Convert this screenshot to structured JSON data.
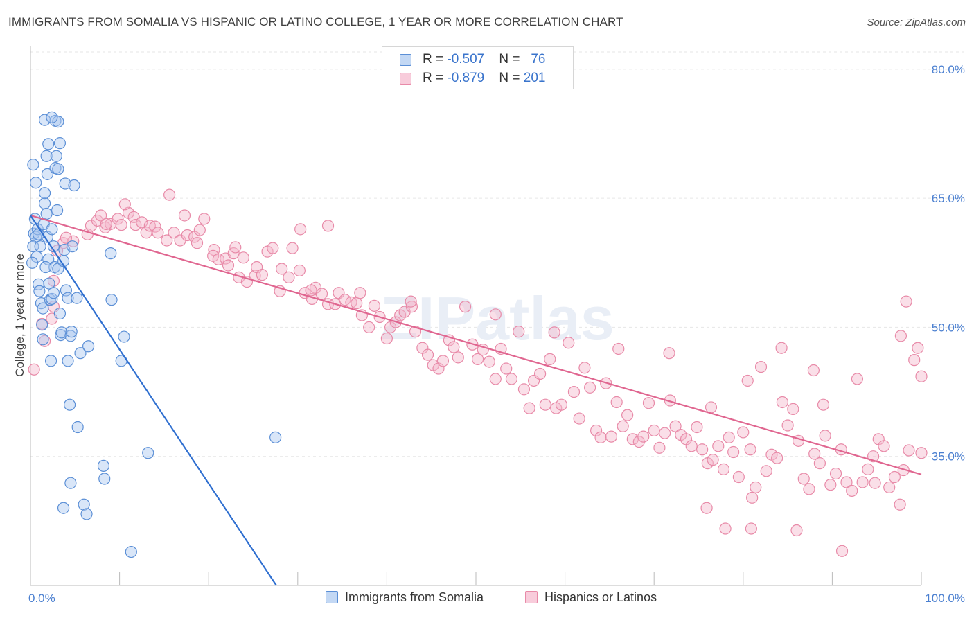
{
  "title": "IMMIGRANTS FROM SOMALIA VS HISPANIC OR LATINO COLLEGE, 1 YEAR OR MORE CORRELATION CHART",
  "source": "Source: ZipAtlas.com",
  "watermark": "ZIPatlas",
  "legend_top": [
    {
      "r_label": "R = ",
      "r_value": "-0.507",
      "n_label": "N = ",
      "n_value": "76"
    },
    {
      "r_label": "R = ",
      "r_value": "-0.879",
      "n_label": "N = ",
      "n_value": "201"
    }
  ],
  "colors": {
    "somalia_fill": "#aac8f0",
    "somalia_stroke": "#5b8fd6",
    "somalia_line": "#2f6fd0",
    "hispanic_fill": "#f5b8cc",
    "hispanic_stroke": "#e88aa8",
    "hispanic_line": "#e06690",
    "tick_label": "#4a7fd0",
    "grid": "#e6e6e6"
  },
  "chart_data": {
    "type": "scatter",
    "xlabel": "",
    "ylabel": "College, 1 year or more",
    "xlim": [
      0,
      100
    ],
    "ylim": [
      20,
      82
    ],
    "x_tick_labels": [
      {
        "value": 0,
        "label": "0.0%"
      },
      {
        "value": 100,
        "label": "100.0%"
      }
    ],
    "y_tick_labels": [
      {
        "value": 35,
        "label": "35.0%"
      },
      {
        "value": 50,
        "label": "50.0%"
      },
      {
        "value": 65,
        "label": "65.0%"
      },
      {
        "value": 80,
        "label": "80.0%"
      }
    ],
    "grid": true,
    "legend_placement": "bottom",
    "series": [
      {
        "name": "Immigrants from Somalia",
        "trendline": {
          "x": [
            0,
            27.6
          ],
          "y": [
            63.0,
            20.0
          ]
        },
        "points": [
          [
            0.3,
            68.9
          ],
          [
            0.6,
            66.8
          ],
          [
            0.5,
            62.6
          ],
          [
            0.4,
            60.9
          ],
          [
            0.6,
            60.5
          ],
          [
            0.3,
            59.4
          ],
          [
            0.7,
            58.2
          ],
          [
            0.2,
            57.5
          ],
          [
            0.8,
            61.4
          ],
          [
            0.9,
            55.0
          ],
          [
            1.1,
            59.4
          ],
          [
            1.0,
            54.2
          ],
          [
            1.2,
            52.8
          ],
          [
            1.3,
            50.3
          ],
          [
            1.4,
            48.6
          ],
          [
            1.5,
            62.0
          ],
          [
            1.6,
            64.4
          ],
          [
            1.6,
            65.6
          ],
          [
            1.8,
            69.9
          ],
          [
            1.9,
            67.8
          ],
          [
            1.9,
            60.5
          ],
          [
            2.0,
            57.9
          ],
          [
            2.1,
            55.1
          ],
          [
            2.2,
            53.2
          ],
          [
            2.3,
            46.1
          ],
          [
            2.4,
            53.3
          ],
          [
            2.4,
            61.4
          ],
          [
            2.6,
            59.4
          ],
          [
            2.7,
            57.0
          ],
          [
            2.9,
            69.9
          ],
          [
            2.8,
            68.5
          ],
          [
            3.1,
            68.4
          ],
          [
            3.3,
            71.4
          ],
          [
            3.1,
            56.8
          ],
          [
            3.3,
            51.6
          ],
          [
            3.4,
            49.1
          ],
          [
            3.5,
            49.4
          ],
          [
            3.8,
            59.0
          ],
          [
            3.7,
            57.7
          ],
          [
            3.9,
            66.7
          ],
          [
            4.0,
            54.3
          ],
          [
            4.2,
            53.4
          ],
          [
            4.2,
            46.1
          ],
          [
            4.4,
            41.0
          ],
          [
            4.5,
            49.0
          ],
          [
            4.6,
            49.5
          ],
          [
            4.7,
            59.4
          ],
          [
            4.9,
            66.5
          ],
          [
            5.2,
            53.4
          ],
          [
            5.3,
            38.4
          ],
          [
            5.6,
            47.0
          ],
          [
            6.0,
            29.4
          ],
          [
            6.3,
            28.3
          ],
          [
            6.5,
            47.8
          ],
          [
            3.7,
            29.0
          ],
          [
            4.5,
            31.9
          ],
          [
            2.8,
            74.0
          ],
          [
            3.1,
            73.9
          ],
          [
            8.2,
            33.9
          ],
          [
            8.3,
            32.4
          ],
          [
            9.0,
            58.6
          ],
          [
            9.1,
            53.2
          ],
          [
            10.2,
            46.1
          ],
          [
            10.5,
            48.9
          ],
          [
            11.3,
            23.9
          ],
          [
            13.2,
            35.4
          ],
          [
            1.6,
            74.1
          ],
          [
            2.4,
            74.4
          ],
          [
            2.0,
            71.3
          ],
          [
            27.5,
            37.2
          ],
          [
            3.0,
            63.6
          ],
          [
            2.6,
            54.0
          ],
          [
            1.4,
            52.2
          ],
          [
            0.9,
            60.8
          ],
          [
            1.8,
            63.2
          ],
          [
            1.7,
            57.0
          ]
        ]
      },
      {
        "name": "Hispanics or Latinos",
        "trendline": {
          "x": [
            0,
            100
          ],
          "y": [
            63.0,
            32.9
          ]
        },
        "points": [
          [
            0.4,
            45.1
          ],
          [
            1.3,
            50.4
          ],
          [
            2.4,
            51.0
          ],
          [
            2.6,
            52.4
          ],
          [
            1.6,
            48.4
          ],
          [
            2.6,
            55.4
          ],
          [
            3.7,
            59.8
          ],
          [
            4.8,
            60.0
          ],
          [
            6.4,
            60.8
          ],
          [
            6.8,
            61.8
          ],
          [
            7.5,
            62.4
          ],
          [
            7.9,
            63.0
          ],
          [
            8.4,
            61.6
          ],
          [
            9.0,
            62.0
          ],
          [
            9.8,
            62.6
          ],
          [
            10.2,
            61.9
          ],
          [
            11.0,
            63.3
          ],
          [
            11.6,
            62.8
          ],
          [
            11.8,
            61.9
          ],
          [
            12.5,
            62.2
          ],
          [
            13.0,
            61.0
          ],
          [
            13.4,
            61.8
          ],
          [
            14.0,
            61.7
          ],
          [
            14.3,
            61.0
          ],
          [
            15.3,
            60.1
          ],
          [
            16.1,
            61.0
          ],
          [
            16.8,
            60.1
          ],
          [
            17.6,
            60.7
          ],
          [
            18.4,
            60.5
          ],
          [
            18.7,
            59.8
          ],
          [
            19.0,
            61.3
          ],
          [
            19.5,
            62.6
          ],
          [
            20.6,
            59.0
          ],
          [
            20.5,
            58.3
          ],
          [
            21.1,
            57.9
          ],
          [
            21.9,
            58.0
          ],
          [
            22.2,
            57.2
          ],
          [
            22.8,
            58.6
          ],
          [
            23.4,
            55.8
          ],
          [
            23.9,
            58.1
          ],
          [
            24.3,
            55.3
          ],
          [
            25.2,
            56.0
          ],
          [
            25.4,
            57.0
          ],
          [
            26.0,
            56.1
          ],
          [
            26.6,
            58.8
          ],
          [
            27.2,
            59.2
          ],
          [
            28.0,
            54.2
          ],
          [
            28.2,
            56.8
          ],
          [
            29.0,
            55.8
          ],
          [
            29.4,
            59.2
          ],
          [
            30.2,
            56.6
          ],
          [
            30.8,
            54.0
          ],
          [
            31.6,
            53.3
          ],
          [
            32.0,
            54.6
          ],
          [
            32.7,
            53.9
          ],
          [
            33.4,
            52.7
          ],
          [
            34.2,
            52.7
          ],
          [
            34.6,
            54.0
          ],
          [
            35.3,
            53.2
          ],
          [
            36.0,
            52.9
          ],
          [
            36.6,
            52.8
          ],
          [
            37.2,
            51.4
          ],
          [
            38.0,
            50.0
          ],
          [
            38.6,
            52.5
          ],
          [
            39.2,
            51.2
          ],
          [
            40.0,
            48.7
          ],
          [
            40.4,
            50.0
          ],
          [
            41.0,
            50.6
          ],
          [
            41.5,
            51.4
          ],
          [
            42.0,
            51.8
          ],
          [
            42.8,
            52.4
          ],
          [
            43.2,
            49.5
          ],
          [
            44.0,
            47.6
          ],
          [
            44.6,
            46.8
          ],
          [
            45.2,
            45.6
          ],
          [
            45.8,
            45.2
          ],
          [
            46.3,
            46.1
          ],
          [
            47.0,
            48.5
          ],
          [
            47.5,
            47.7
          ],
          [
            48.0,
            46.5
          ],
          [
            48.8,
            52.4
          ],
          [
            49.6,
            48.0
          ],
          [
            50.2,
            46.3
          ],
          [
            50.8,
            47.4
          ],
          [
            51.5,
            46.0
          ],
          [
            52.2,
            44.0
          ],
          [
            52.8,
            47.5
          ],
          [
            53.4,
            45.2
          ],
          [
            54.0,
            44.0
          ],
          [
            54.8,
            49.5
          ],
          [
            55.4,
            42.8
          ],
          [
            56.0,
            40.6
          ],
          [
            56.5,
            43.8
          ],
          [
            57.2,
            44.6
          ],
          [
            57.8,
            41.0
          ],
          [
            58.3,
            46.3
          ],
          [
            59.0,
            40.6
          ],
          [
            59.6,
            41.0
          ],
          [
            60.4,
            48.2
          ],
          [
            61.0,
            42.5
          ],
          [
            61.6,
            39.4
          ],
          [
            62.2,
            45.3
          ],
          [
            62.8,
            43.0
          ],
          [
            63.5,
            38.0
          ],
          [
            64.0,
            37.2
          ],
          [
            64.6,
            43.5
          ],
          [
            65.2,
            37.3
          ],
          [
            65.8,
            41.3
          ],
          [
            66.5,
            38.5
          ],
          [
            67.0,
            39.8
          ],
          [
            67.6,
            37.0
          ],
          [
            68.3,
            36.7
          ],
          [
            68.8,
            37.3
          ],
          [
            69.4,
            41.2
          ],
          [
            70.0,
            38.0
          ],
          [
            70.6,
            36.0
          ],
          [
            71.2,
            37.7
          ],
          [
            71.8,
            41.5
          ],
          [
            72.4,
            38.5
          ],
          [
            73.0,
            37.5
          ],
          [
            73.6,
            37.0
          ],
          [
            74.2,
            36.2
          ],
          [
            74.8,
            38.4
          ],
          [
            75.4,
            35.8
          ],
          [
            76.0,
            34.2
          ],
          [
            76.6,
            34.6
          ],
          [
            77.2,
            36.2
          ],
          [
            77.8,
            33.5
          ],
          [
            78.4,
            37.2
          ],
          [
            78.9,
            35.5
          ],
          [
            79.5,
            32.6
          ],
          [
            80.0,
            37.8
          ],
          [
            80.8,
            35.8
          ],
          [
            81.4,
            31.4
          ],
          [
            82.0,
            45.4
          ],
          [
            82.6,
            33.3
          ],
          [
            83.2,
            35.2
          ],
          [
            83.8,
            34.8
          ],
          [
            84.3,
            47.6
          ],
          [
            85.0,
            38.6
          ],
          [
            85.6,
            40.5
          ],
          [
            86.2,
            36.8
          ],
          [
            86.8,
            32.4
          ],
          [
            87.4,
            31.2
          ],
          [
            88.0,
            35.3
          ],
          [
            88.6,
            34.2
          ],
          [
            89.2,
            37.4
          ],
          [
            89.8,
            31.7
          ],
          [
            90.4,
            33.0
          ],
          [
            91.0,
            35.8
          ],
          [
            91.6,
            32.0
          ],
          [
            92.2,
            31.0
          ],
          [
            92.8,
            44.0
          ],
          [
            93.4,
            32.0
          ],
          [
            94.0,
            33.5
          ],
          [
            94.6,
            35.0
          ],
          [
            95.2,
            37.0
          ],
          [
            95.8,
            36.2
          ],
          [
            96.4,
            31.4
          ],
          [
            97.0,
            32.6
          ],
          [
            97.6,
            29.4
          ],
          [
            98.0,
            33.4
          ],
          [
            98.6,
            35.7
          ],
          [
            99.2,
            46.2
          ],
          [
            99.6,
            47.6
          ],
          [
            100.0,
            44.3
          ],
          [
            100.0,
            35.4
          ],
          [
            98.3,
            53.0
          ],
          [
            97.7,
            49.0
          ],
          [
            94.8,
            31.9
          ],
          [
            89.0,
            41.0
          ],
          [
            87.9,
            45.0
          ],
          [
            84.4,
            41.3
          ],
          [
            80.5,
            43.8
          ],
          [
            76.4,
            40.7
          ],
          [
            71.7,
            47.0
          ],
          [
            66.0,
            47.5
          ],
          [
            58.8,
            49.4
          ],
          [
            52.2,
            51.5
          ],
          [
            42.7,
            53.0
          ],
          [
            37.0,
            54.0
          ],
          [
            31.5,
            54.3
          ],
          [
            30.3,
            61.4
          ],
          [
            33.4,
            61.8
          ],
          [
            23.0,
            59.3
          ],
          [
            17.3,
            63.0
          ],
          [
            15.6,
            65.4
          ],
          [
            10.6,
            64.3
          ],
          [
            8.5,
            62.0
          ],
          [
            4.0,
            60.4
          ],
          [
            3.0,
            58.9
          ],
          [
            86.0,
            26.4
          ],
          [
            91.1,
            24.0
          ],
          [
            80.9,
            26.6
          ],
          [
            78.0,
            26.6
          ],
          [
            75.9,
            29.0
          ],
          [
            81.0,
            30.2
          ]
        ]
      }
    ]
  },
  "legend_bottom": [
    {
      "label": "Immigrants from Somalia"
    },
    {
      "label": "Hispanics or Latinos"
    }
  ]
}
